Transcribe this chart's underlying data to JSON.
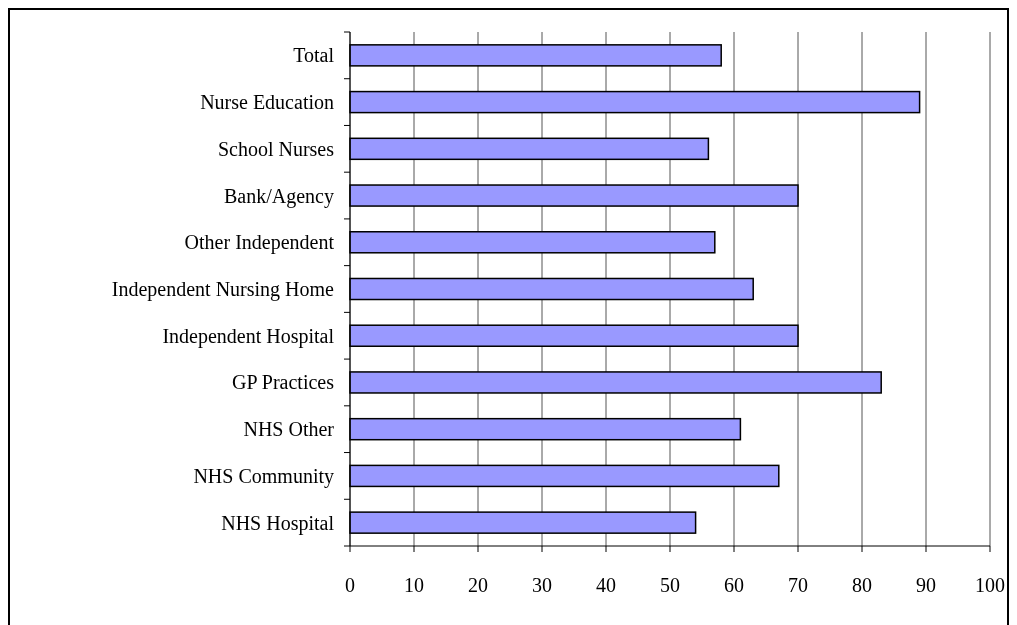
{
  "chart_data": {
    "type": "bar",
    "orientation": "horizontal",
    "categories": [
      "Total",
      "Nurse Education",
      "School Nurses",
      "Bank/Agency",
      "Other Independent",
      "Independent Nursing Home",
      "Independent Hospital",
      "GP Practices",
      "NHS Other",
      "NHS Community",
      "NHS Hospital"
    ],
    "values": [
      58,
      89,
      56,
      70,
      57,
      63,
      70,
      83,
      61,
      67,
      54
    ],
    "color": "#9999ff",
    "xlim": [
      0,
      100
    ],
    "xticks": [
      0,
      10,
      20,
      30,
      40,
      50,
      60,
      70,
      80,
      90,
      100
    ],
    "grid": "x"
  }
}
